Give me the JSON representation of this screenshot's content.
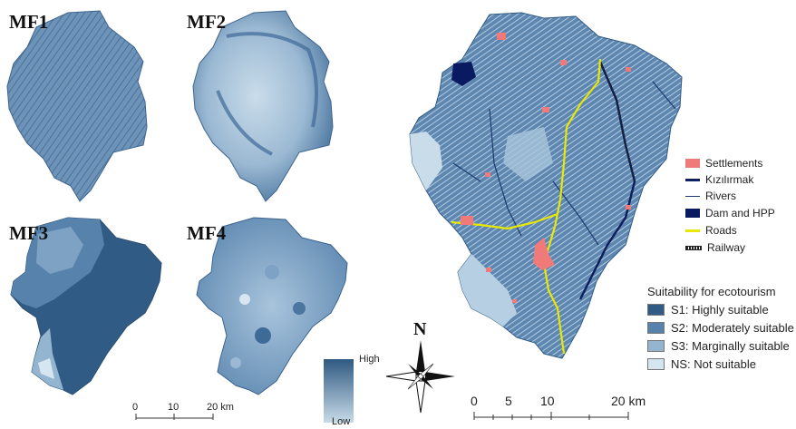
{
  "panels": [
    {
      "id": "mf1",
      "label": "MF1"
    },
    {
      "id": "mf2",
      "label": "MF2"
    },
    {
      "id": "mf3",
      "label": "MF3"
    },
    {
      "id": "mf4",
      "label": "MF4"
    }
  ],
  "gradient_legend": {
    "high": "High",
    "low": "Low",
    "high_color": "#2f5a82",
    "low_color": "#c8dbe8"
  },
  "small_scale": {
    "ticks": [
      "0",
      "10",
      "20 km"
    ]
  },
  "north_arrow": {
    "label": "N"
  },
  "main_scale": {
    "ticks": [
      "0",
      "5",
      "10",
      "20 km"
    ]
  },
  "map_legend": [
    {
      "label": "Settlements",
      "symbol": "fill",
      "color": "#f07a7a"
    },
    {
      "label": "Kızılırmak",
      "symbol": "line",
      "color": "#0d1f5c"
    },
    {
      "label": "Rivers",
      "symbol": "thin-line",
      "color": "#1c3a6e"
    },
    {
      "label": "Dam and HPP",
      "symbol": "fill",
      "color": "#0a1a60"
    },
    {
      "label": "Roads",
      "symbol": "line",
      "color": "#e8e800"
    },
    {
      "label": "Railway",
      "symbol": "rail",
      "color": "#222222"
    }
  ],
  "suitability_legend": {
    "title": "Suitability for ecotourism",
    "items": [
      {
        "label": "S1: Highly suitable",
        "color": "#2f5b84"
      },
      {
        "label": "S2: Moderately suitable",
        "color": "#5682ab"
      },
      {
        "label": "S3: Marginally suitable",
        "color": "#94b5cf"
      },
      {
        "label": "NS: Not suitable",
        "color": "#d5e6f0"
      }
    ]
  }
}
